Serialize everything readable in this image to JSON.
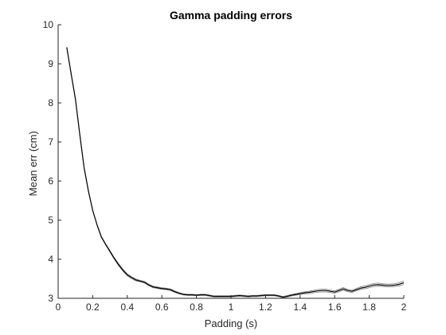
{
  "chart_data": {
    "type": "line",
    "title": "Gamma padding errors",
    "xlabel": "Padding (s)",
    "ylabel": "Mean err (cm)",
    "xlim": [
      0,
      2
    ],
    "ylim": [
      3,
      10
    ],
    "xticks": [
      0,
      0.2,
      0.4,
      0.6,
      0.8,
      1,
      1.2,
      1.4,
      1.6,
      1.8,
      2
    ],
    "xtick_labels": [
      "0",
      "0.2",
      "0.4",
      "0.6",
      "0.8",
      "1",
      "1.2",
      "1.4",
      "1.6",
      "1.8",
      "2"
    ],
    "yticks": [
      3,
      4,
      5,
      6,
      7,
      8,
      9,
      10
    ],
    "ytick_labels": [
      "3",
      "4",
      "5",
      "6",
      "7",
      "8",
      "9",
      "10"
    ],
    "grid": false,
    "colors": {
      "line": "#000000",
      "band": "#7f7f7f",
      "axis": "#262626"
    },
    "series": [
      {
        "role": "mean",
        "x": [
          0.05,
          0.075,
          0.1,
          0.125,
          0.15,
          0.175,
          0.2,
          0.225,
          0.25,
          0.275,
          0.3,
          0.325,
          0.35,
          0.375,
          0.4,
          0.425,
          0.45,
          0.475,
          0.5,
          0.525,
          0.55,
          0.575,
          0.6,
          0.625,
          0.65,
          0.675,
          0.7,
          0.725,
          0.75,
          0.775,
          0.8,
          0.825,
          0.85,
          0.875,
          0.9,
          0.925,
          0.95,
          0.975,
          1.0,
          1.025,
          1.05,
          1.075,
          1.1,
          1.125,
          1.15,
          1.175,
          1.2,
          1.225,
          1.25,
          1.275,
          1.3,
          1.325,
          1.35,
          1.375,
          1.4,
          1.425,
          1.45,
          1.475,
          1.5,
          1.525,
          1.55,
          1.575,
          1.6,
          1.625,
          1.65,
          1.675,
          1.7,
          1.725,
          1.75,
          1.775,
          1.8,
          1.825,
          1.85,
          1.875,
          1.9,
          1.925,
          1.95,
          1.975,
          2.0
        ],
        "y": [
          9.42,
          8.75,
          8.1,
          7.2,
          6.35,
          5.75,
          5.25,
          4.88,
          4.57,
          4.38,
          4.2,
          4.02,
          3.86,
          3.72,
          3.6,
          3.53,
          3.47,
          3.44,
          3.41,
          3.34,
          3.29,
          3.27,
          3.25,
          3.24,
          3.22,
          3.17,
          3.13,
          3.1,
          3.09,
          3.09,
          3.08,
          3.09,
          3.09,
          3.07,
          3.05,
          3.05,
          3.05,
          3.05,
          3.05,
          3.06,
          3.07,
          3.06,
          3.05,
          3.06,
          3.06,
          3.07,
          3.08,
          3.08,
          3.08,
          3.06,
          3.03,
          3.05,
          3.08,
          3.1,
          3.12,
          3.14,
          3.15,
          3.17,
          3.19,
          3.2,
          3.2,
          3.18,
          3.16,
          3.2,
          3.24,
          3.2,
          3.18,
          3.22,
          3.26,
          3.28,
          3.31,
          3.34,
          3.35,
          3.34,
          3.33,
          3.33,
          3.34,
          3.36,
          3.4
        ]
      }
    ],
    "band_halfwidth": [
      0.01,
      0.01,
      0.01,
      0.01,
      0.01,
      0.01,
      0.01,
      0.01,
      0.015,
      0.015,
      0.02,
      0.02,
      0.025,
      0.025,
      0.025,
      0.025,
      0.025,
      0.02,
      0.02,
      0.02,
      0.02,
      0.02,
      0.02,
      0.02,
      0.02,
      0.02,
      0.015,
      0.015,
      0.015,
      0.015,
      0.015,
      0.015,
      0.015,
      0.015,
      0.015,
      0.015,
      0.015,
      0.015,
      0.015,
      0.015,
      0.015,
      0.015,
      0.015,
      0.015,
      0.015,
      0.015,
      0.015,
      0.015,
      0.015,
      0.015,
      0.015,
      0.02,
      0.02,
      0.02,
      0.025,
      0.025,
      0.03,
      0.03,
      0.035,
      0.035,
      0.035,
      0.03,
      0.03,
      0.035,
      0.035,
      0.03,
      0.03,
      0.03,
      0.035,
      0.035,
      0.04,
      0.04,
      0.04,
      0.035,
      0.035,
      0.035,
      0.035,
      0.04,
      0.045
    ]
  }
}
